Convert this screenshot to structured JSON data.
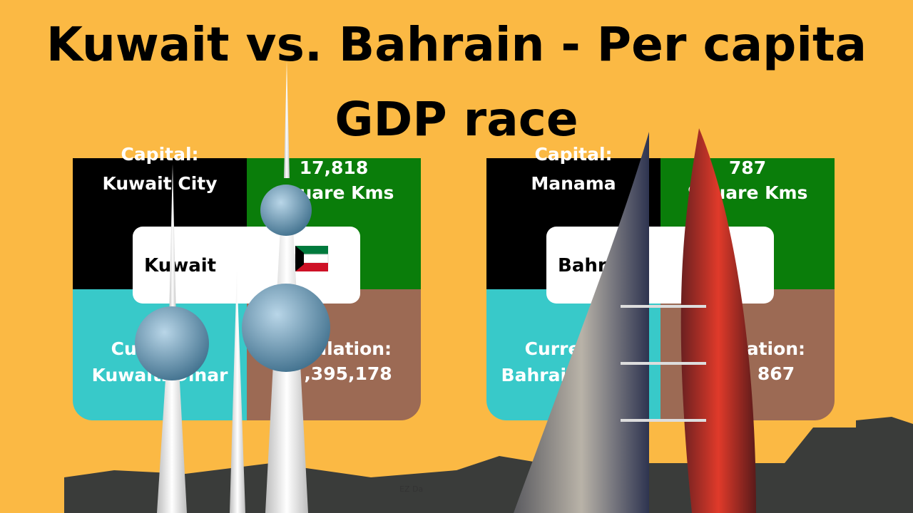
{
  "title": {
    "line1": "Kuwait vs. Bahrain - Per capita",
    "line2": "GDP race"
  },
  "panels": [
    {
      "country": "Kuwait",
      "capital_label": "Capital:",
      "capital": "Kuwait City",
      "area": "17,818",
      "area_unit": "Square Kms",
      "currency_label": "Currency:",
      "currency": "Kuwaiti Dinar",
      "population_label": "Population:",
      "population": ",395,178"
    },
    {
      "country": "Bahrain",
      "capital_label": "Capital:",
      "capital": "Manama",
      "area": "787",
      "area_unit": "Square Kms",
      "currency_label": "Currency:",
      "currency": "Bahraini Dinar",
      "population_label": "Population:",
      "population": "867"
    }
  ],
  "watermark": "EZ Da"
}
